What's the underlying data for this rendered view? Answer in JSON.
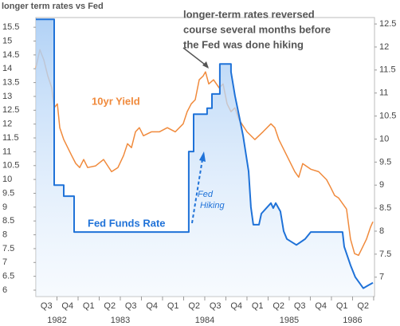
{
  "chart_data": {
    "type": "line",
    "title": "longer term rates vs Fed",
    "xlim": [
      1982.5,
      1986.51
    ],
    "xticks": [
      {
        "value": 1982.625,
        "label": "Q3"
      },
      {
        "value": 1982.875,
        "label": "Q4"
      },
      {
        "value": 1983.125,
        "label": "Q1"
      },
      {
        "value": 1983.375,
        "label": "Q2"
      },
      {
        "value": 1983.625,
        "label": "Q3"
      },
      {
        "value": 1983.875,
        "label": "Q4"
      },
      {
        "value": 1984.125,
        "label": "Q1"
      },
      {
        "value": 1984.375,
        "label": "Q2"
      },
      {
        "value": 1984.625,
        "label": "Q3"
      },
      {
        "value": 1984.875,
        "label": "Q4"
      },
      {
        "value": 1985.125,
        "label": "Q1"
      },
      {
        "value": 1985.375,
        "label": "Q2"
      },
      {
        "value": 1985.625,
        "label": "Q3"
      },
      {
        "value": 1985.875,
        "label": "Q4"
      },
      {
        "value": 1986.125,
        "label": "Q1"
      },
      {
        "value": 1986.375,
        "label": "Q2"
      }
    ],
    "year_labels": [
      {
        "value": 1982.75,
        "label": "1982"
      },
      {
        "value": 1983.5,
        "label": "1983"
      },
      {
        "value": 1984.5,
        "label": "1984"
      },
      {
        "value": 1985.5,
        "label": "1985"
      },
      {
        "value": 1986.25,
        "label": "1986"
      }
    ],
    "ylim": [
      5.77,
      15.85
    ],
    "yticks": [
      6,
      6.5,
      7,
      7.5,
      8,
      8.5,
      9,
      9.5,
      10,
      10.5,
      11,
      11.5,
      12,
      12.5,
      13,
      13.5,
      14,
      14.5,
      15,
      15.5
    ],
    "y2lim": [
      6.58,
      12.64
    ],
    "y2ticks": [
      7,
      7.5,
      8,
      8.5,
      9,
      9.5,
      10,
      10.5,
      11,
      11.5,
      12,
      12.5
    ],
    "series": [
      {
        "name": "10yr Yield",
        "color": "#f08a3c",
        "axis": "y",
        "x": [
          1982.5,
          1982.547,
          1982.594,
          1982.642,
          1982.689,
          1982.717,
          1982.755,
          1982.783,
          1982.83,
          1982.877,
          1982.925,
          1982.972,
          1983.019,
          1983.066,
          1983.113,
          1983.208,
          1983.302,
          1983.396,
          1983.472,
          1983.538,
          1983.585,
          1983.632,
          1983.679,
          1983.726,
          1983.774,
          1983.868,
          1983.962,
          1984.057,
          1984.151,
          1984.245,
          1984.292,
          1984.34,
          1984.387,
          1984.434,
          1984.481,
          1984.509,
          1984.547,
          1984.604,
          1984.67,
          1984.717,
          1984.764,
          1984.811,
          1984.858,
          1984.906,
          1985.0,
          1985.094,
          1985.189,
          1985.283,
          1985.33,
          1985.377,
          1985.472,
          1985.566,
          1985.613,
          1985.66,
          1985.755,
          1985.849,
          1985.943,
          1985.991,
          1986.038,
          1986.085,
          1986.132,
          1986.179,
          1986.226,
          1986.274,
          1986.321,
          1986.368,
          1986.415,
          1986.462,
          1986.491
        ],
        "values": [
          14.03,
          14.69,
          14.32,
          13.74,
          13.31,
          12.59,
          12.73,
          11.87,
          11.44,
          11.15,
          10.86,
          10.58,
          10.43,
          10.72,
          10.43,
          10.49,
          10.72,
          10.28,
          10.43,
          10.86,
          11.29,
          11.15,
          11.72,
          11.87,
          11.58,
          11.72,
          11.72,
          11.87,
          11.72,
          12.01,
          12.45,
          12.73,
          12.88,
          13.6,
          13.74,
          13.89,
          13.45,
          13.6,
          13.31,
          13.45,
          12.73,
          12.45,
          12.59,
          12.16,
          11.72,
          11.44,
          11.72,
          12.01,
          11.87,
          11.44,
          10.86,
          10.28,
          10.08,
          10.57,
          10.37,
          10.28,
          9.99,
          9.71,
          9.42,
          9.33,
          9.13,
          8.93,
          7.84,
          7.32,
          7.26,
          7.55,
          7.84,
          8.27,
          8.47
        ]
      },
      {
        "name": "Fed Funds Rate",
        "color": "#1f72d8",
        "axis": "y2",
        "x": [
          1982.5,
          1982.717,
          1982.717,
          1982.83,
          1982.83,
          1982.953,
          1982.953,
          1984.311,
          1984.311,
          1984.368,
          1984.368,
          1984.528,
          1984.528,
          1984.585,
          1984.585,
          1984.679,
          1984.679,
          1984.811,
          1984.811,
          1984.858,
          1984.906,
          1984.953,
          1985.019,
          1985.047,
          1985.075,
          1985.142,
          1985.17,
          1985.283,
          1985.311,
          1985.34,
          1985.396,
          1985.434,
          1985.472,
          1985.585,
          1985.689,
          1985.755,
          1986.132,
          1986.151,
          1986.226,
          1986.283,
          1986.377,
          1986.434,
          1986.491
        ],
        "values": [
          12.6,
          12.6,
          9.0,
          9.0,
          8.76,
          8.76,
          7.98,
          7.98,
          9.73,
          9.73,
          10.54,
          10.54,
          10.67,
          10.67,
          10.98,
          10.98,
          11.63,
          11.63,
          11.46,
          10.94,
          10.51,
          10.08,
          9.3,
          8.52,
          8.14,
          8.14,
          8.38,
          8.61,
          8.5,
          8.61,
          8.43,
          8.0,
          7.83,
          7.7,
          7.83,
          7.98,
          7.98,
          7.66,
          7.26,
          7.0,
          6.76,
          6.82,
          6.88
        ]
      }
    ],
    "annotations": [
      {
        "lines": [
          "longer-term rates reversed",
          "course several months before",
          "the Fed was done hiking"
        ]
      },
      {
        "lines": [
          "Fed",
          "Hiking"
        ]
      }
    ]
  }
}
